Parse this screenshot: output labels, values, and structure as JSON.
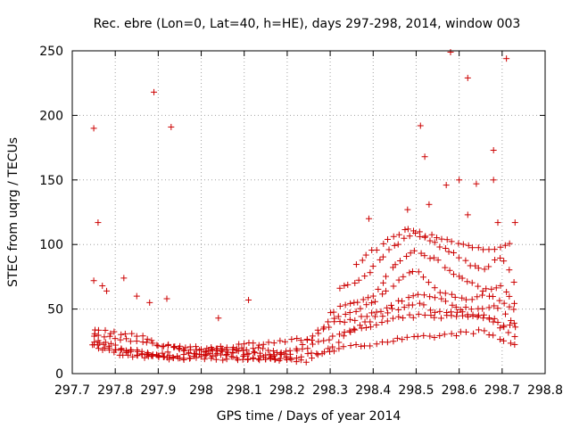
{
  "chart_data": {
    "type": "scatter",
    "title": "Rec. ebre (Lon=0, Lat=40, h=HE), days 297-298, 2014, window 003",
    "xlabel": "GPS time / Days of year 2014",
    "ylabel": "STEC from uqrg / TECUs",
    "xlim": [
      297.7,
      298.8
    ],
    "ylim": [
      0,
      250
    ],
    "x_ticks": [
      297.7,
      297.8,
      297.9,
      298,
      298.1,
      298.2,
      298.3,
      298.4,
      298.5,
      298.6,
      298.7,
      298.8
    ],
    "x_tick_labels": [
      "297.7",
      "297.8",
      "297.9",
      "298",
      "298.1",
      "298.2",
      "298.3",
      "298.4",
      "298.5",
      "298.6",
      "298.7",
      "298.8"
    ],
    "y_ticks": [
      0,
      50,
      100,
      150,
      200,
      250
    ],
    "y_tick_labels": [
      "0",
      "50",
      "100",
      "150",
      "200",
      "250"
    ],
    "grid": true,
    "marker": "plus",
    "colors": {
      "points": "#cc0000",
      "grid": "#a0a0a0",
      "frame": "#000000"
    },
    "outliers": [
      [
        297.75,
        190
      ],
      [
        297.76,
        117
      ],
      [
        297.89,
        218
      ],
      [
        297.93,
        191
      ],
      [
        298.51,
        192
      ],
      [
        298.52,
        168
      ],
      [
        298.58,
        249
      ],
      [
        298.62,
        229
      ],
      [
        298.71,
        244
      ],
      [
        298.68,
        173
      ],
      [
        298.57,
        146
      ],
      [
        298.6,
        150
      ],
      [
        298.68,
        150
      ],
      [
        298.64,
        147
      ],
      [
        298.62,
        123
      ],
      [
        298.48,
        127
      ],
      [
        298.53,
        131
      ],
      [
        298.39,
        120
      ],
      [
        298.69,
        117
      ],
      [
        298.73,
        117
      ],
      [
        298.04,
        43
      ],
      [
        298.11,
        57
      ],
      [
        297.82,
        74
      ],
      [
        297.75,
        72
      ],
      [
        297.77,
        68
      ],
      [
        297.78,
        64
      ],
      [
        297.85,
        60
      ],
      [
        297.92,
        58
      ],
      [
        297.88,
        55
      ]
    ],
    "traces": [
      {
        "x0": 297.75,
        "x1": 298.73,
        "n": 80,
        "knots": [
          [
            297.75,
            21
          ],
          [
            297.9,
            13
          ],
          [
            298.0,
            12
          ],
          [
            298.2,
            11
          ],
          [
            298.3,
            18
          ],
          [
            298.45,
            26
          ],
          [
            298.55,
            29
          ],
          [
            298.65,
            33
          ],
          [
            298.73,
            22
          ]
        ]
      },
      {
        "x0": 297.75,
        "x1": 298.73,
        "n": 80,
        "knots": [
          [
            297.75,
            25
          ],
          [
            297.85,
            17
          ],
          [
            297.95,
            11
          ],
          [
            298.05,
            16
          ],
          [
            298.1,
            12
          ],
          [
            298.25,
            10
          ],
          [
            298.35,
            32
          ],
          [
            298.45,
            42
          ],
          [
            298.5,
            45
          ],
          [
            298.55,
            44
          ],
          [
            298.65,
            45
          ],
          [
            298.73,
            30
          ]
        ]
      },
      {
        "x0": 297.75,
        "x1": 298.73,
        "n": 80,
        "knots": [
          [
            297.75,
            28
          ],
          [
            297.8,
            20
          ],
          [
            297.9,
            14
          ],
          [
            297.95,
            22
          ],
          [
            298.05,
            18
          ],
          [
            298.15,
            14
          ],
          [
            298.25,
            20
          ],
          [
            298.35,
            35
          ],
          [
            298.45,
            50
          ],
          [
            298.5,
            55
          ],
          [
            298.55,
            47
          ],
          [
            298.65,
            46
          ],
          [
            298.73,
            35
          ]
        ]
      },
      {
        "x0": 297.75,
        "x1": 298.73,
        "n": 80,
        "knots": [
          [
            297.75,
            30
          ],
          [
            297.85,
            25
          ],
          [
            297.95,
            20
          ],
          [
            298.0,
            14
          ],
          [
            298.1,
            17
          ],
          [
            298.2,
            13
          ],
          [
            298.3,
            38
          ],
          [
            298.4,
            46
          ],
          [
            298.5,
            62
          ],
          [
            298.55,
            58
          ],
          [
            298.6,
            50
          ],
          [
            298.68,
            52
          ],
          [
            298.73,
            40
          ]
        ]
      },
      {
        "x0": 297.75,
        "x1": 298.73,
        "n": 80,
        "knots": [
          [
            297.75,
            34
          ],
          [
            297.85,
            30
          ],
          [
            297.9,
            22
          ],
          [
            298.0,
            18
          ],
          [
            298.05,
            21
          ],
          [
            298.15,
            24
          ],
          [
            298.25,
            27
          ],
          [
            298.3,
            40
          ],
          [
            298.4,
            55
          ],
          [
            298.45,
            70
          ],
          [
            298.5,
            80
          ],
          [
            298.55,
            65
          ],
          [
            298.6,
            58
          ],
          [
            298.68,
            60
          ],
          [
            298.73,
            50
          ]
        ]
      },
      {
        "x0": 297.75,
        "x1": 298.2,
        "n": 40,
        "knots": [
          [
            297.75,
            22
          ],
          [
            297.8,
            16
          ],
          [
            297.9,
            12
          ],
          [
            298.0,
            16
          ],
          [
            298.1,
            20
          ],
          [
            298.2,
            17
          ]
        ]
      },
      {
        "x0": 298.3,
        "x1": 298.73,
        "n": 40,
        "knots": [
          [
            298.3,
            48
          ],
          [
            298.4,
            60
          ],
          [
            298.45,
            85
          ],
          [
            298.5,
            95
          ],
          [
            298.55,
            88
          ],
          [
            298.6,
            75
          ],
          [
            298.65,
            65
          ],
          [
            298.7,
            68
          ],
          [
            298.73,
            55
          ]
        ]
      },
      {
        "x0": 298.32,
        "x1": 298.73,
        "n": 36,
        "knots": [
          [
            298.32,
            65
          ],
          [
            298.38,
            75
          ],
          [
            298.45,
            100
          ],
          [
            298.5,
            108
          ],
          [
            298.55,
            100
          ],
          [
            298.6,
            90
          ],
          [
            298.65,
            80
          ],
          [
            298.7,
            90
          ],
          [
            298.73,
            70
          ]
        ]
      },
      {
        "x0": 298.36,
        "x1": 298.72,
        "n": 30,
        "knots": [
          [
            298.36,
            85
          ],
          [
            298.42,
            100
          ],
          [
            298.48,
            112
          ],
          [
            298.55,
            105
          ],
          [
            298.6,
            100
          ],
          [
            298.66,
            95
          ],
          [
            298.72,
            102
          ]
        ]
      }
    ]
  }
}
